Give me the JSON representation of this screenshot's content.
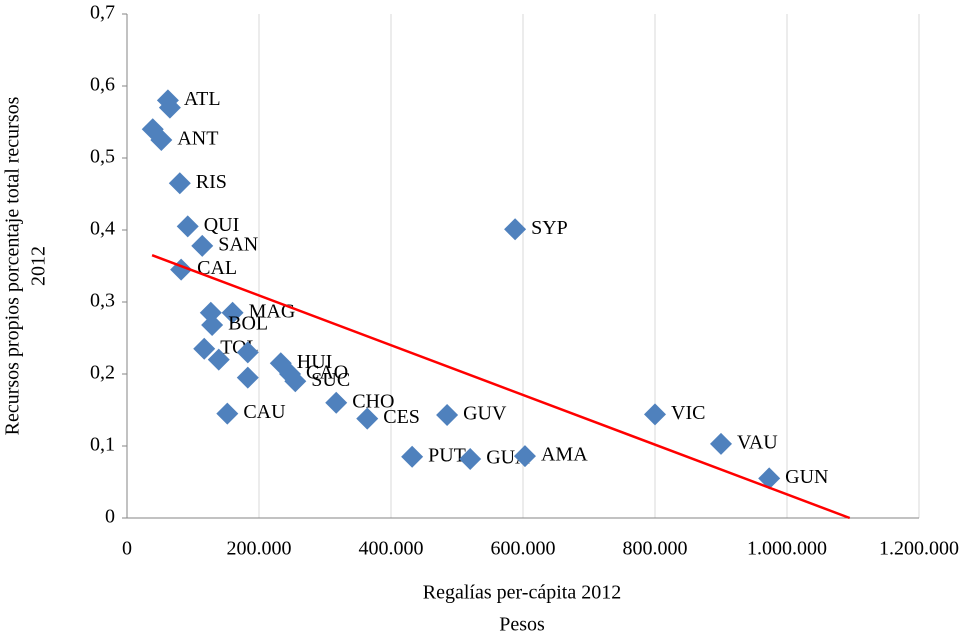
{
  "chart_data": {
    "type": "scatter",
    "ylabel": [
      "Recursos propios porcentaje total recursos",
      "2012"
    ],
    "xlabel": [
      "Regalías per-cápita 2012",
      "Pesos"
    ],
    "series": [
      {
        "color": "#4f81bd",
        "x": [
          62000,
          65000,
          39000,
          52000,
          80000,
          92000,
          114000,
          82000,
          127000,
          160000,
          129000,
          117000,
          139000,
          183000,
          233000,
          247000,
          255000,
          183000,
          152000,
          317000,
          364000,
          485000,
          588000,
          432000,
          520000,
          603000,
          800000,
          900000,
          973000
        ],
        "values": [
          0.58,
          0.57,
          0.54,
          0.525,
          0.465,
          0.405,
          0.378,
          0.345,
          0.285,
          0.285,
          0.268,
          0.235,
          0.22,
          0.23,
          0.215,
          0.2,
          0.19,
          0.195,
          0.145,
          0.16,
          0.138,
          0.143,
          0.401,
          0.085,
          0.082,
          0.086,
          0.144,
          0.103,
          0.055
        ],
        "labels": [
          "ATL",
          null,
          null,
          "ANT",
          "RIS",
          "QUI",
          "SAN",
          "CAL",
          null,
          "MAG",
          "BOL",
          "TOL",
          null,
          null,
          "HUI",
          "CAO",
          "SUC",
          null,
          "CAU",
          "CHO",
          "CES",
          "GUV",
          "SYP",
          "PUT",
          "GUA",
          "AMA",
          "VIC",
          "VAU",
          "GUN"
        ]
      }
    ],
    "trendline": {
      "color": "#ff0000",
      "x": [
        38000,
        1095000
      ],
      "values": [
        0.365,
        0
      ]
    },
    "xlim": [
      0,
      1200000
    ],
    "xticks": [
      0,
      {
        "value": 200000,
        "label": "200.000"
      },
      {
        "value": 400000,
        "label": "400.000"
      },
      {
        "value": 600000,
        "label": "600.000"
      },
      {
        "value": 800000,
        "label": "800.000"
      },
      {
        "value": 1000000,
        "label": "1.000.000"
      },
      {
        "value": 1200000,
        "label": "1.200.000"
      }
    ],
    "ylim": [
      0,
      0.7
    ],
    "yticks": [
      0,
      {
        "value": 0.1,
        "label": "0,1"
      },
      {
        "value": 0.2,
        "label": "0,2"
      },
      {
        "value": 0.3,
        "label": "0,3"
      },
      {
        "value": 0.4,
        "label": "0,4"
      },
      {
        "value": 0.5,
        "label": "0,5"
      },
      {
        "value": 0.6,
        "label": "0,6"
      },
      {
        "value": 0.7,
        "label": "0,7"
      }
    ],
    "grid": true
  }
}
